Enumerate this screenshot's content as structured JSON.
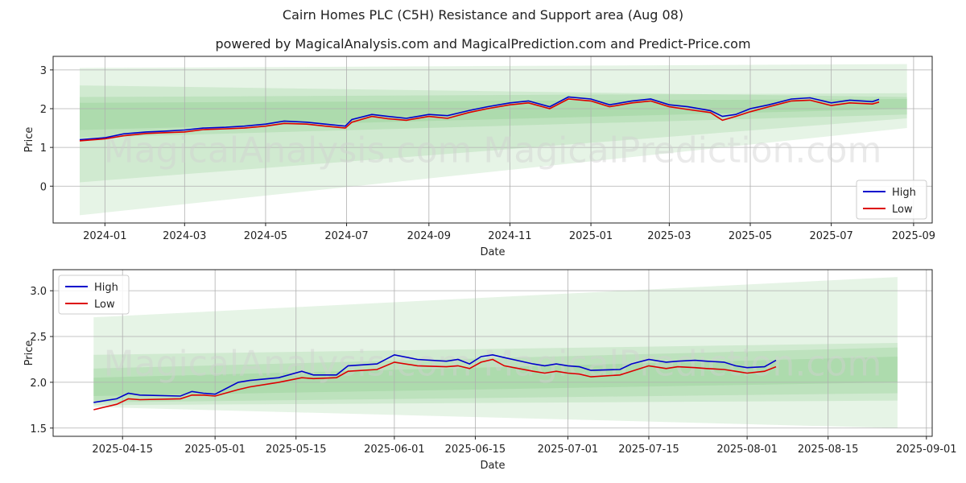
{
  "title": "Cairn Homes PLC (C5H) Resistance and Support area (Aug 08)",
  "subtitle": "powered by MagicalAnalysis.com and MagicalPrediction.com and Predict-Price.com",
  "watermark": "MagicalAnalysis.com    MagicalPrediction.com",
  "colors": {
    "high": "#0000cc",
    "low": "#dd0000",
    "band": "#4caf50",
    "grid": "#b0b0b0"
  },
  "chart_data": [
    {
      "type": "line",
      "xlabel": "Date",
      "ylabel": "Price",
      "xlim": [
        "2023-11-23",
        "2025-09-15"
      ],
      "ylim": [
        -0.95,
        3.35
      ],
      "x_ticks": [
        "2024-01",
        "2024-03",
        "2024-05",
        "2024-07",
        "2024-09",
        "2024-11",
        "2025-01",
        "2025-03",
        "2025-05",
        "2025-07",
        "2025-09"
      ],
      "y_ticks": [
        "0",
        "1",
        "2",
        "3"
      ],
      "legend": {
        "position": "lower-right",
        "entries": [
          "High",
          "Low"
        ]
      },
      "grid": true,
      "series": [
        {
          "name": "High",
          "x": [
            "2023-12-13",
            "2024-01-01",
            "2024-01-15",
            "2024-02-01",
            "2024-02-15",
            "2024-03-01",
            "2024-03-15",
            "2024-04-01",
            "2024-04-15",
            "2024-05-01",
            "2024-05-15",
            "2024-06-01",
            "2024-06-15",
            "2024-06-30",
            "2024-07-05",
            "2024-07-20",
            "2024-08-01",
            "2024-08-15",
            "2024-09-01",
            "2024-09-15",
            "2024-10-01",
            "2024-10-15",
            "2024-11-01",
            "2024-11-15",
            "2024-12-01",
            "2024-12-15",
            "2025-01-01",
            "2025-01-15",
            "2025-02-01",
            "2025-02-15",
            "2025-03-01",
            "2025-03-15",
            "2025-04-01",
            "2025-04-10",
            "2025-04-20",
            "2025-05-01",
            "2025-05-15",
            "2025-06-01",
            "2025-06-15",
            "2025-07-01",
            "2025-07-15",
            "2025-08-01",
            "2025-08-06"
          ],
          "values": [
            1.2,
            1.25,
            1.35,
            1.4,
            1.42,
            1.45,
            1.5,
            1.52,
            1.55,
            1.6,
            1.68,
            1.65,
            1.6,
            1.55,
            1.72,
            1.85,
            1.8,
            1.75,
            1.85,
            1.82,
            1.95,
            2.05,
            2.15,
            2.2,
            2.05,
            2.3,
            2.25,
            2.1,
            2.2,
            2.25,
            2.1,
            2.05,
            1.95,
            1.8,
            1.85,
            2.0,
            2.1,
            2.25,
            2.28,
            2.15,
            2.22,
            2.18,
            2.24
          ]
        },
        {
          "name": "Low",
          "x": [
            "2023-12-13",
            "2024-01-01",
            "2024-01-15",
            "2024-02-01",
            "2024-02-15",
            "2024-03-01",
            "2024-03-15",
            "2024-04-01",
            "2024-04-15",
            "2024-05-01",
            "2024-05-15",
            "2024-06-01",
            "2024-06-15",
            "2024-06-30",
            "2024-07-05",
            "2024-07-20",
            "2024-08-01",
            "2024-08-15",
            "2024-09-01",
            "2024-09-15",
            "2024-10-01",
            "2024-10-15",
            "2024-11-01",
            "2024-11-15",
            "2024-12-01",
            "2024-12-15",
            "2025-01-01",
            "2025-01-15",
            "2025-02-01",
            "2025-02-15",
            "2025-03-01",
            "2025-03-15",
            "2025-04-01",
            "2025-04-10",
            "2025-04-20",
            "2025-05-01",
            "2025-05-15",
            "2025-06-01",
            "2025-06-15",
            "2025-07-01",
            "2025-07-15",
            "2025-08-01",
            "2025-08-06"
          ],
          "values": [
            1.17,
            1.22,
            1.3,
            1.36,
            1.38,
            1.4,
            1.46,
            1.48,
            1.5,
            1.55,
            1.62,
            1.6,
            1.55,
            1.5,
            1.65,
            1.8,
            1.74,
            1.7,
            1.8,
            1.75,
            1.9,
            2.0,
            2.1,
            2.15,
            2.0,
            2.25,
            2.2,
            2.05,
            2.15,
            2.2,
            2.05,
            1.98,
            1.9,
            1.7,
            1.8,
            1.92,
            2.05,
            2.2,
            2.22,
            2.08,
            2.15,
            2.12,
            2.17
          ]
        }
      ],
      "bands": [
        {
          "start": "2023-12-13",
          "end": "2025-08-27",
          "lower": [
            -0.75,
            1.5
          ],
          "upper": [
            3.05,
            3.15
          ]
        },
        {
          "start": "2023-12-13",
          "end": "2025-08-27",
          "lower": [
            0.1,
            1.75
          ],
          "upper": [
            2.6,
            2.3
          ]
        },
        {
          "start": "2023-12-13",
          "end": "2025-08-27",
          "lower": [
            1.25,
            1.85
          ],
          "upper": [
            2.3,
            2.4
          ]
        },
        {
          "start": "2023-12-13",
          "end": "2025-08-27",
          "lower": [
            1.45,
            2.0
          ],
          "upper": [
            2.15,
            2.25
          ]
        }
      ]
    },
    {
      "type": "line",
      "xlabel": "Date",
      "ylabel": "Price",
      "xlim": [
        "2025-04-03",
        "2025-09-02"
      ],
      "ylim": [
        1.41,
        3.23
      ],
      "x_ticks": [
        "2025-04-15",
        "2025-05-01",
        "2025-05-15",
        "2025-06-01",
        "2025-06-15",
        "2025-07-01",
        "2025-07-15",
        "2025-08-01",
        "2025-08-15",
        "2025-09-01"
      ],
      "y_ticks": [
        "1.5",
        "2.0",
        "2.5",
        "3.0"
      ],
      "legend": {
        "position": "top-left",
        "entries": [
          "High",
          "Low"
        ]
      },
      "grid": true,
      "series": [
        {
          "name": "High",
          "x": [
            "2025-04-10",
            "2025-04-14",
            "2025-04-16",
            "2025-04-18",
            "2025-04-25",
            "2025-04-27",
            "2025-04-29",
            "2025-05-01",
            "2025-05-05",
            "2025-05-07",
            "2025-05-12",
            "2025-05-16",
            "2025-05-18",
            "2025-05-22",
            "2025-05-24",
            "2025-05-29",
            "2025-06-01",
            "2025-06-05",
            "2025-06-10",
            "2025-06-12",
            "2025-06-14",
            "2025-06-16",
            "2025-06-18",
            "2025-06-20",
            "2025-06-25",
            "2025-06-27",
            "2025-06-29",
            "2025-07-01",
            "2025-07-03",
            "2025-07-05",
            "2025-07-10",
            "2025-07-12",
            "2025-07-15",
            "2025-07-18",
            "2025-07-20",
            "2025-07-23",
            "2025-07-25",
            "2025-07-28",
            "2025-07-30",
            "2025-08-01",
            "2025-08-04",
            "2025-08-06"
          ],
          "values": [
            1.78,
            1.82,
            1.88,
            1.86,
            1.85,
            1.9,
            1.88,
            1.87,
            2.0,
            2.02,
            2.05,
            2.12,
            2.08,
            2.08,
            2.18,
            2.2,
            2.3,
            2.25,
            2.23,
            2.25,
            2.2,
            2.28,
            2.3,
            2.27,
            2.2,
            2.18,
            2.2,
            2.18,
            2.17,
            2.13,
            2.14,
            2.2,
            2.25,
            2.22,
            2.23,
            2.24,
            2.23,
            2.22,
            2.18,
            2.16,
            2.17,
            2.24
          ]
        },
        {
          "name": "Low",
          "x": [
            "2025-04-10",
            "2025-04-14",
            "2025-04-16",
            "2025-04-18",
            "2025-04-25",
            "2025-04-27",
            "2025-04-29",
            "2025-05-01",
            "2025-05-05",
            "2025-05-07",
            "2025-05-12",
            "2025-05-16",
            "2025-05-18",
            "2025-05-22",
            "2025-05-24",
            "2025-05-29",
            "2025-06-01",
            "2025-06-05",
            "2025-06-10",
            "2025-06-12",
            "2025-06-14",
            "2025-06-16",
            "2025-06-18",
            "2025-06-20",
            "2025-06-25",
            "2025-06-27",
            "2025-06-29",
            "2025-07-01",
            "2025-07-03",
            "2025-07-05",
            "2025-07-10",
            "2025-07-12",
            "2025-07-15",
            "2025-07-18",
            "2025-07-20",
            "2025-07-23",
            "2025-07-25",
            "2025-07-28",
            "2025-07-30",
            "2025-08-01",
            "2025-08-04",
            "2025-08-06"
          ],
          "values": [
            1.7,
            1.76,
            1.82,
            1.81,
            1.82,
            1.86,
            1.86,
            1.85,
            1.92,
            1.95,
            2.0,
            2.05,
            2.04,
            2.05,
            2.12,
            2.14,
            2.22,
            2.18,
            2.17,
            2.18,
            2.15,
            2.22,
            2.25,
            2.18,
            2.12,
            2.1,
            2.12,
            2.1,
            2.09,
            2.06,
            2.08,
            2.12,
            2.18,
            2.15,
            2.17,
            2.16,
            2.15,
            2.14,
            2.12,
            2.1,
            2.12,
            2.17
          ]
        }
      ],
      "bands": [
        {
          "start": "2025-04-10",
          "end": "2025-08-27",
          "lower": [
            1.73,
            1.5
          ],
          "upper": [
            2.71,
            3.15
          ]
        },
        {
          "start": "2025-04-10",
          "end": "2025-08-27",
          "lower": [
            1.75,
            1.8
          ],
          "upper": [
            2.3,
            2.43
          ]
        },
        {
          "start": "2025-04-10",
          "end": "2025-08-27",
          "lower": [
            1.78,
            1.88
          ],
          "upper": [
            2.15,
            2.38
          ]
        },
        {
          "start": "2025-04-10",
          "end": "2025-08-27",
          "lower": [
            1.85,
            2.0
          ],
          "upper": [
            2.05,
            2.28
          ]
        }
      ]
    }
  ]
}
